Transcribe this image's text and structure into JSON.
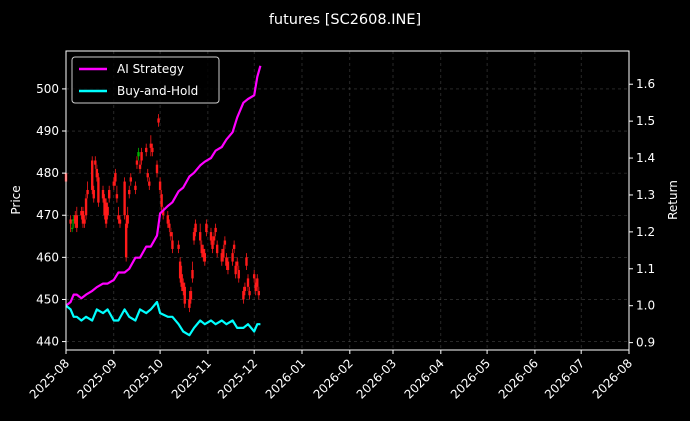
{
  "chart_data": {
    "type": "line",
    "title": "futures [SC2608.INE]",
    "ylabel_left": "Price",
    "ylabel_right": "Return",
    "xlim": [
      "2025-08-01",
      "2026-08-01"
    ],
    "ylim_left": [
      438,
      509
    ],
    "ylim_right": [
      0.88,
      1.69
    ],
    "grid": true,
    "legend_position": "top-left",
    "x_ticks": [
      "2025-08",
      "2025-09",
      "2025-10",
      "2025-11",
      "2025-12",
      "2026-01",
      "2026-02",
      "2026-03",
      "2026-04",
      "2026-05",
      "2026-06",
      "2026-07",
      "2026-08"
    ],
    "y_ticks_left": [
      440,
      450,
      460,
      470,
      480,
      490,
      500
    ],
    "y_ticks_right": [
      "0.9",
      "1.0",
      "1.1",
      "1.2",
      "1.3",
      "1.4",
      "1.5",
      "1.6"
    ],
    "colors": {
      "up": "#00b000",
      "down": "#ff1a1a",
      "ai": "#ff00ff",
      "bh": "#00ffff"
    },
    "series": [
      {
        "name": "AI Strategy",
        "axis": "right",
        "points": [
          [
            "2025-08-01",
            1.0
          ],
          [
            "2025-08-04",
            1.01
          ],
          [
            "2025-08-06",
            1.03
          ],
          [
            "2025-08-08",
            1.03
          ],
          [
            "2025-08-11",
            1.02
          ],
          [
            "2025-08-14",
            1.03
          ],
          [
            "2025-08-18",
            1.04
          ],
          [
            "2025-08-21",
            1.05
          ],
          [
            "2025-08-25",
            1.06
          ],
          [
            "2025-08-28",
            1.06
          ],
          [
            "2025-09-01",
            1.07
          ],
          [
            "2025-09-04",
            1.09
          ],
          [
            "2025-09-08",
            1.09
          ],
          [
            "2025-09-11",
            1.1
          ],
          [
            "2025-09-15",
            1.13
          ],
          [
            "2025-09-18",
            1.13
          ],
          [
            "2025-09-22",
            1.16
          ],
          [
            "2025-09-25",
            1.16
          ],
          [
            "2025-09-29",
            1.19
          ],
          [
            "2025-10-01",
            1.25
          ],
          [
            "2025-10-06",
            1.27
          ],
          [
            "2025-10-09",
            1.28
          ],
          [
            "2025-10-13",
            1.31
          ],
          [
            "2025-10-16",
            1.32
          ],
          [
            "2025-10-20",
            1.35
          ],
          [
            "2025-10-23",
            1.36
          ],
          [
            "2025-10-27",
            1.38
          ],
          [
            "2025-10-30",
            1.39
          ],
          [
            "2025-11-03",
            1.4
          ],
          [
            "2025-11-06",
            1.42
          ],
          [
            "2025-11-10",
            1.43
          ],
          [
            "2025-11-13",
            1.45
          ],
          [
            "2025-11-17",
            1.47
          ],
          [
            "2025-11-20",
            1.51
          ],
          [
            "2025-11-24",
            1.55
          ],
          [
            "2025-11-27",
            1.56
          ],
          [
            "2025-12-01",
            1.57
          ],
          [
            "2025-12-03",
            1.62
          ],
          [
            "2025-12-05",
            1.65
          ]
        ]
      },
      {
        "name": "Buy-and-Hold",
        "axis": "right",
        "points": [
          [
            "2025-08-01",
            1.0
          ],
          [
            "2025-08-04",
            0.99
          ],
          [
            "2025-08-06",
            0.97
          ],
          [
            "2025-08-08",
            0.97
          ],
          [
            "2025-08-11",
            0.96
          ],
          [
            "2025-08-14",
            0.97
          ],
          [
            "2025-08-18",
            0.96
          ],
          [
            "2025-08-21",
            0.99
          ],
          [
            "2025-08-25",
            0.98
          ],
          [
            "2025-08-28",
            0.99
          ],
          [
            "2025-09-01",
            0.96
          ],
          [
            "2025-09-04",
            0.96
          ],
          [
            "2025-09-08",
            0.99
          ],
          [
            "2025-09-11",
            0.97
          ],
          [
            "2025-09-15",
            0.96
          ],
          [
            "2025-09-18",
            0.99
          ],
          [
            "2025-09-22",
            0.98
          ],
          [
            "2025-09-25",
            0.99
          ],
          [
            "2025-09-29",
            1.01
          ],
          [
            "2025-10-01",
            0.98
          ],
          [
            "2025-10-06",
            0.97
          ],
          [
            "2025-10-09",
            0.97
          ],
          [
            "2025-10-13",
            0.95
          ],
          [
            "2025-10-16",
            0.93
          ],
          [
            "2025-10-20",
            0.92
          ],
          [
            "2025-10-23",
            0.94
          ],
          [
            "2025-10-27",
            0.96
          ],
          [
            "2025-10-30",
            0.95
          ],
          [
            "2025-11-03",
            0.96
          ],
          [
            "2025-11-06",
            0.95
          ],
          [
            "2025-11-10",
            0.96
          ],
          [
            "2025-11-13",
            0.95
          ],
          [
            "2025-11-17",
            0.96
          ],
          [
            "2025-11-20",
            0.94
          ],
          [
            "2025-11-24",
            0.94
          ],
          [
            "2025-11-27",
            0.95
          ],
          [
            "2025-12-01",
            0.93
          ],
          [
            "2025-12-03",
            0.95
          ],
          [
            "2025-12-05",
            0.95
          ]
        ]
      }
    ],
    "candles": [
      [
        "2025-08-01",
        480,
        478,
        490,
        475
      ],
      [
        "2025-08-04",
        469,
        468,
        470,
        466
      ],
      [
        "2025-08-05",
        467,
        467,
        469,
        466
      ],
      [
        "2025-08-06",
        469,
        469,
        470,
        467
      ],
      [
        "2025-08-07",
        470,
        468,
        471,
        467
      ],
      [
        "2025-08-08",
        470,
        467,
        472,
        466
      ],
      [
        "2025-08-11",
        471,
        470,
        472,
        469
      ],
      [
        "2025-08-12",
        471,
        468,
        472,
        467
      ],
      [
        "2025-08-13",
        469,
        468,
        470,
        467
      ],
      [
        "2025-08-14",
        474,
        470,
        475,
        469
      ],
      [
        "2025-08-15",
        476,
        475,
        478,
        474
      ],
      [
        "2025-08-18",
        483,
        476,
        484,
        475
      ],
      [
        "2025-08-19",
        476,
        474,
        477,
        473
      ],
      [
        "2025-08-20",
        483,
        482,
        484,
        481
      ],
      [
        "2025-08-21",
        481,
        479,
        482,
        478
      ],
      [
        "2025-08-22",
        479,
        473,
        480,
        472
      ],
      [
        "2025-08-25",
        476,
        474,
        477,
        473
      ],
      [
        "2025-08-26",
        474,
        470,
        475,
        469
      ],
      [
        "2025-08-27",
        473,
        468,
        474,
        467
      ],
      [
        "2025-08-28",
        472,
        470,
        473,
        469
      ],
      [
        "2025-08-29",
        476,
        474,
        477,
        473
      ],
      [
        "2025-09-01",
        478,
        477,
        479,
        476
      ],
      [
        "2025-09-02",
        480,
        478,
        481,
        477
      ],
      [
        "2025-09-03",
        475,
        474,
        477,
        473
      ],
      [
        "2025-09-04",
        470,
        469,
        472,
        468
      ],
      [
        "2025-09-05",
        469,
        468,
        470,
        467
      ],
      [
        "2025-09-08",
        478,
        470,
        479,
        469
      ],
      [
        "2025-09-09",
        468,
        460,
        470,
        459
      ],
      [
        "2025-09-10",
        470,
        468,
        472,
        467
      ],
      [
        "2025-09-11",
        476,
        475,
        477,
        474
      ],
      [
        "2025-09-12",
        479,
        478,
        480,
        477
      ],
      [
        "2025-09-15",
        477,
        476,
        478,
        475
      ],
      [
        "2025-09-16",
        483,
        482,
        484,
        481
      ],
      [
        "2025-09-17",
        484,
        485,
        486,
        483
      ],
      [
        "2025-09-18",
        482,
        481,
        483,
        480
      ],
      [
        "2025-09-19",
        485,
        483,
        486,
        482
      ],
      [
        "2025-09-22",
        486,
        485,
        487,
        484
      ],
      [
        "2025-09-23",
        480,
        479,
        481,
        478
      ],
      [
        "2025-09-24",
        478,
        477,
        479,
        476
      ],
      [
        "2025-09-25",
        487,
        486,
        489,
        484
      ],
      [
        "2025-09-26",
        486,
        485,
        487,
        484
      ],
      [
        "2025-09-29",
        482,
        480,
        483,
        479
      ],
      [
        "2025-09-30",
        493,
        492,
        494,
        491
      ],
      [
        "2025-10-01",
        478,
        476,
        479,
        475
      ],
      [
        "2025-10-02",
        475,
        472,
        476,
        471
      ],
      [
        "2025-10-03",
        471,
        470,
        472,
        469
      ],
      [
        "2025-10-06",
        470,
        468,
        471,
        467
      ],
      [
        "2025-10-07",
        468,
        467,
        469,
        466
      ],
      [
        "2025-10-08",
        466,
        465,
        467,
        464
      ],
      [
        "2025-10-09",
        464,
        462,
        466,
        461
      ],
      [
        "2025-10-13",
        463,
        462,
        464,
        461
      ],
      [
        "2025-10-14",
        459,
        455,
        460,
        454
      ],
      [
        "2025-10-15",
        456,
        453,
        458,
        452
      ],
      [
        "2025-10-16",
        454,
        452,
        455,
        451
      ],
      [
        "2025-10-17",
        453,
        449,
        454,
        448
      ],
      [
        "2025-10-20",
        450,
        448,
        452,
        447
      ],
      [
        "2025-10-21",
        452,
        450,
        453,
        449
      ],
      [
        "2025-10-22",
        457,
        455,
        459,
        454
      ],
      [
        "2025-10-23",
        466,
        464,
        467,
        463
      ],
      [
        "2025-10-24",
        468,
        466,
        469,
        465
      ],
      [
        "2025-10-27",
        466,
        464,
        468,
        463
      ],
      [
        "2025-10-28",
        463,
        461,
        464,
        460
      ],
      [
        "2025-10-29",
        462,
        460,
        463,
        459
      ],
      [
        "2025-10-30",
        461,
        459,
        462,
        458
      ],
      [
        "2025-10-31",
        468,
        466,
        469,
        465
      ],
      [
        "2025-11-03",
        466,
        464,
        467,
        463
      ],
      [
        "2025-11-04",
        464,
        462,
        465,
        461
      ],
      [
        "2025-11-05",
        465,
        464,
        466,
        463
      ],
      [
        "2025-11-06",
        467,
        466,
        468,
        465
      ],
      [
        "2025-11-07",
        463,
        461,
        464,
        460
      ],
      [
        "2025-11-10",
        461,
        459,
        462,
        458
      ],
      [
        "2025-11-11",
        462,
        460,
        463,
        459
      ],
      [
        "2025-11-12",
        464,
        463,
        465,
        462
      ],
      [
        "2025-11-13",
        460,
        458,
        461,
        457
      ],
      [
        "2025-11-14",
        459,
        457,
        460,
        456
      ],
      [
        "2025-11-17",
        461,
        459,
        462,
        458
      ],
      [
        "2025-11-18",
        463,
        462,
        464,
        461
      ],
      [
        "2025-11-19",
        458,
        456,
        459,
        455
      ],
      [
        "2025-11-20",
        459,
        458,
        460,
        457
      ],
      [
        "2025-11-21",
        457,
        455,
        458,
        454
      ],
      [
        "2025-11-24",
        452,
        450,
        453,
        449
      ],
      [
        "2025-11-25",
        453,
        452,
        454,
        451
      ],
      [
        "2025-11-26",
        460,
        458,
        461,
        457
      ],
      [
        "2025-11-27",
        455,
        453,
        456,
        452
      ],
      [
        "2025-11-28",
        452,
        451,
        453,
        450
      ],
      [
        "2025-12-01",
        456,
        455,
        457,
        454
      ],
      [
        "2025-12-02",
        454,
        452,
        455,
        451
      ],
      [
        "2025-12-03",
        455,
        453,
        456,
        452
      ],
      [
        "2025-12-04",
        452,
        451,
        453,
        450
      ]
    ]
  }
}
